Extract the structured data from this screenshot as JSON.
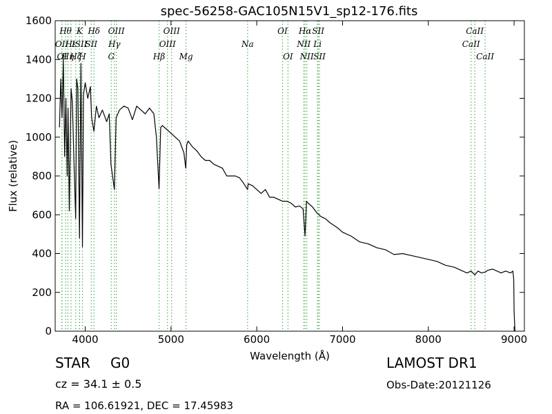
{
  "chart_data": {
    "type": "line",
    "title": "spec-56258-GAC105N15V1_sp12-176.fits",
    "xlabel": "Wavelength (Å)",
    "ylabel": "Flux (relative)",
    "xlim": [
      3650,
      9120
    ],
    "ylim": [
      0,
      1600
    ],
    "xticks": [
      4000,
      5000,
      6000,
      7000,
      8000,
      9000
    ],
    "yticks": [
      0,
      200,
      400,
      600,
      800,
      1000,
      1200,
      1400,
      1600
    ],
    "grid": false,
    "line_color": "#000000",
    "marker_line_color": "#4caf50",
    "series": [
      {
        "x": [
          3700,
          3715,
          3730,
          3745,
          3760,
          3775,
          3790,
          3800,
          3815,
          3835,
          3850,
          3870,
          3889,
          3900,
          3915,
          3933,
          3950,
          3968,
          3980,
          4000,
          4030,
          4060,
          4075,
          4101,
          4130,
          4160,
          4200,
          4250,
          4280,
          4300,
          4340,
          4360,
          4400,
          4450,
          4500,
          4550,
          4600,
          4650,
          4700,
          4750,
          4800,
          4830,
          4861,
          4880,
          4900,
          4950,
          5000,
          5050,
          5100,
          5150,
          5172,
          5183,
          5200,
          5250,
          5300,
          5350,
          5400,
          5450,
          5500,
          5550,
          5600,
          5650,
          5700,
          5750,
          5800,
          5850,
          5893,
          5900,
          5950,
          6000,
          6050,
          6100,
          6150,
          6200,
          6250,
          6300,
          6350,
          6400,
          6450,
          6500,
          6540,
          6563,
          6580,
          6600,
          6650,
          6700,
          6750,
          6800,
          6850,
          6900,
          6950,
          7000,
          7100,
          7200,
          7300,
          7400,
          7500,
          7600,
          7700,
          7800,
          7900,
          8000,
          8100,
          8200,
          8300,
          8400,
          8450,
          8498,
          8520,
          8542,
          8580,
          8620,
          8662,
          8700,
          8750,
          8800,
          8850,
          8900,
          8960,
          8985,
          8995,
          9000,
          9010
        ],
        "y": [
          1050,
          1300,
          1100,
          1400,
          900,
          1200,
          800,
          1150,
          620,
          1250,
          1180,
          860,
          580,
          1300,
          1250,
          480,
          1380,
          435,
          1220,
          1280,
          1200,
          1260,
          1100,
          1030,
          1160,
          1100,
          1140,
          1080,
          1120,
          860,
          730,
          1100,
          1140,
          1160,
          1150,
          1090,
          1160,
          1140,
          1120,
          1150,
          1120,
          1000,
          735,
          1050,
          1060,
          1040,
          1020,
          1000,
          980,
          920,
          840,
          960,
          980,
          950,
          930,
          900,
          880,
          880,
          860,
          850,
          840,
          800,
          800,
          800,
          790,
          760,
          730,
          760,
          750,
          730,
          710,
          730,
          690,
          690,
          680,
          670,
          670,
          660,
          640,
          645,
          630,
          490,
          670,
          660,
          640,
          610,
          590,
          580,
          560,
          545,
          530,
          510,
          490,
          460,
          450,
          430,
          420,
          395,
          400,
          390,
          380,
          370,
          360,
          340,
          330,
          310,
          300,
          310,
          300,
          290,
          310,
          300,
          305,
          315,
          320,
          310,
          300,
          310,
          300,
          310,
          270,
          100,
          0
        ]
      }
    ],
    "line_markers": [
      {
        "wavelength": 3727,
        "label": "OII",
        "row": 2
      },
      {
        "wavelength": 3729,
        "label": "OI",
        "row": 3
      },
      {
        "wavelength": 3771,
        "label": "Hθ",
        "row": 1
      },
      {
        "wavelength": 3798,
        "label": "Hη",
        "row": 3
      },
      {
        "wavelength": 3835,
        "label": "Hε",
        "row": 2
      },
      {
        "wavelength": 3889,
        "label": "Hζ",
        "row": 3
      },
      {
        "wavelength": 3934,
        "label": "K",
        "row": 1
      },
      {
        "wavelength": 3933,
        "label": "ISII",
        "row": 2
      },
      {
        "wavelength": 3968,
        "label": "H",
        "row": 3
      },
      {
        "wavelength": 4070,
        "label": "SII",
        "row": 2
      },
      {
        "wavelength": 4102,
        "label": "Hδ",
        "row": 1
      },
      {
        "wavelength": 4304,
        "label": "G",
        "row": 3
      },
      {
        "wavelength": 4340,
        "label": "Hγ",
        "row": 2
      },
      {
        "wavelength": 4363,
        "label": "OIII",
        "row": 1
      },
      {
        "wavelength": 4861,
        "label": "Hβ",
        "row": 3
      },
      {
        "wavelength": 4959,
        "label": "OIII",
        "row": 2
      },
      {
        "wavelength": 5007,
        "label": "OIII",
        "row": 1
      },
      {
        "wavelength": 5175,
        "label": "Mg",
        "row": 3
      },
      {
        "wavelength": 5893,
        "label": "Na",
        "row": 2
      },
      {
        "wavelength": 6300,
        "label": "OI",
        "row": 1
      },
      {
        "wavelength": 6364,
        "label": "OI",
        "row": 3
      },
      {
        "wavelength": 6548,
        "label": "NII",
        "row": 2
      },
      {
        "wavelength": 6563,
        "label": "Hα",
        "row": 1
      },
      {
        "wavelength": 6583,
        "label": "NII",
        "row": 3
      },
      {
        "wavelength": 6708,
        "label": "Li",
        "row": 2
      },
      {
        "wavelength": 6716,
        "label": "SII",
        "row": 1
      },
      {
        "wavelength": 6731,
        "label": "SII",
        "row": 3
      },
      {
        "wavelength": 8498,
        "label": "CaII",
        "row": 2
      },
      {
        "wavelength": 8542,
        "label": "CaII",
        "row": 1
      },
      {
        "wavelength": 8662,
        "label": "CaII",
        "row": 3
      }
    ]
  },
  "info": {
    "class_label": "STAR",
    "subclass": "G0",
    "redshift": "cz = 34.1 ± 0.5",
    "coords": "RA = 106.61921, DEC = 17.45983",
    "survey": "LAMOST DR1",
    "obs_date": "Obs-Date:20121126"
  }
}
